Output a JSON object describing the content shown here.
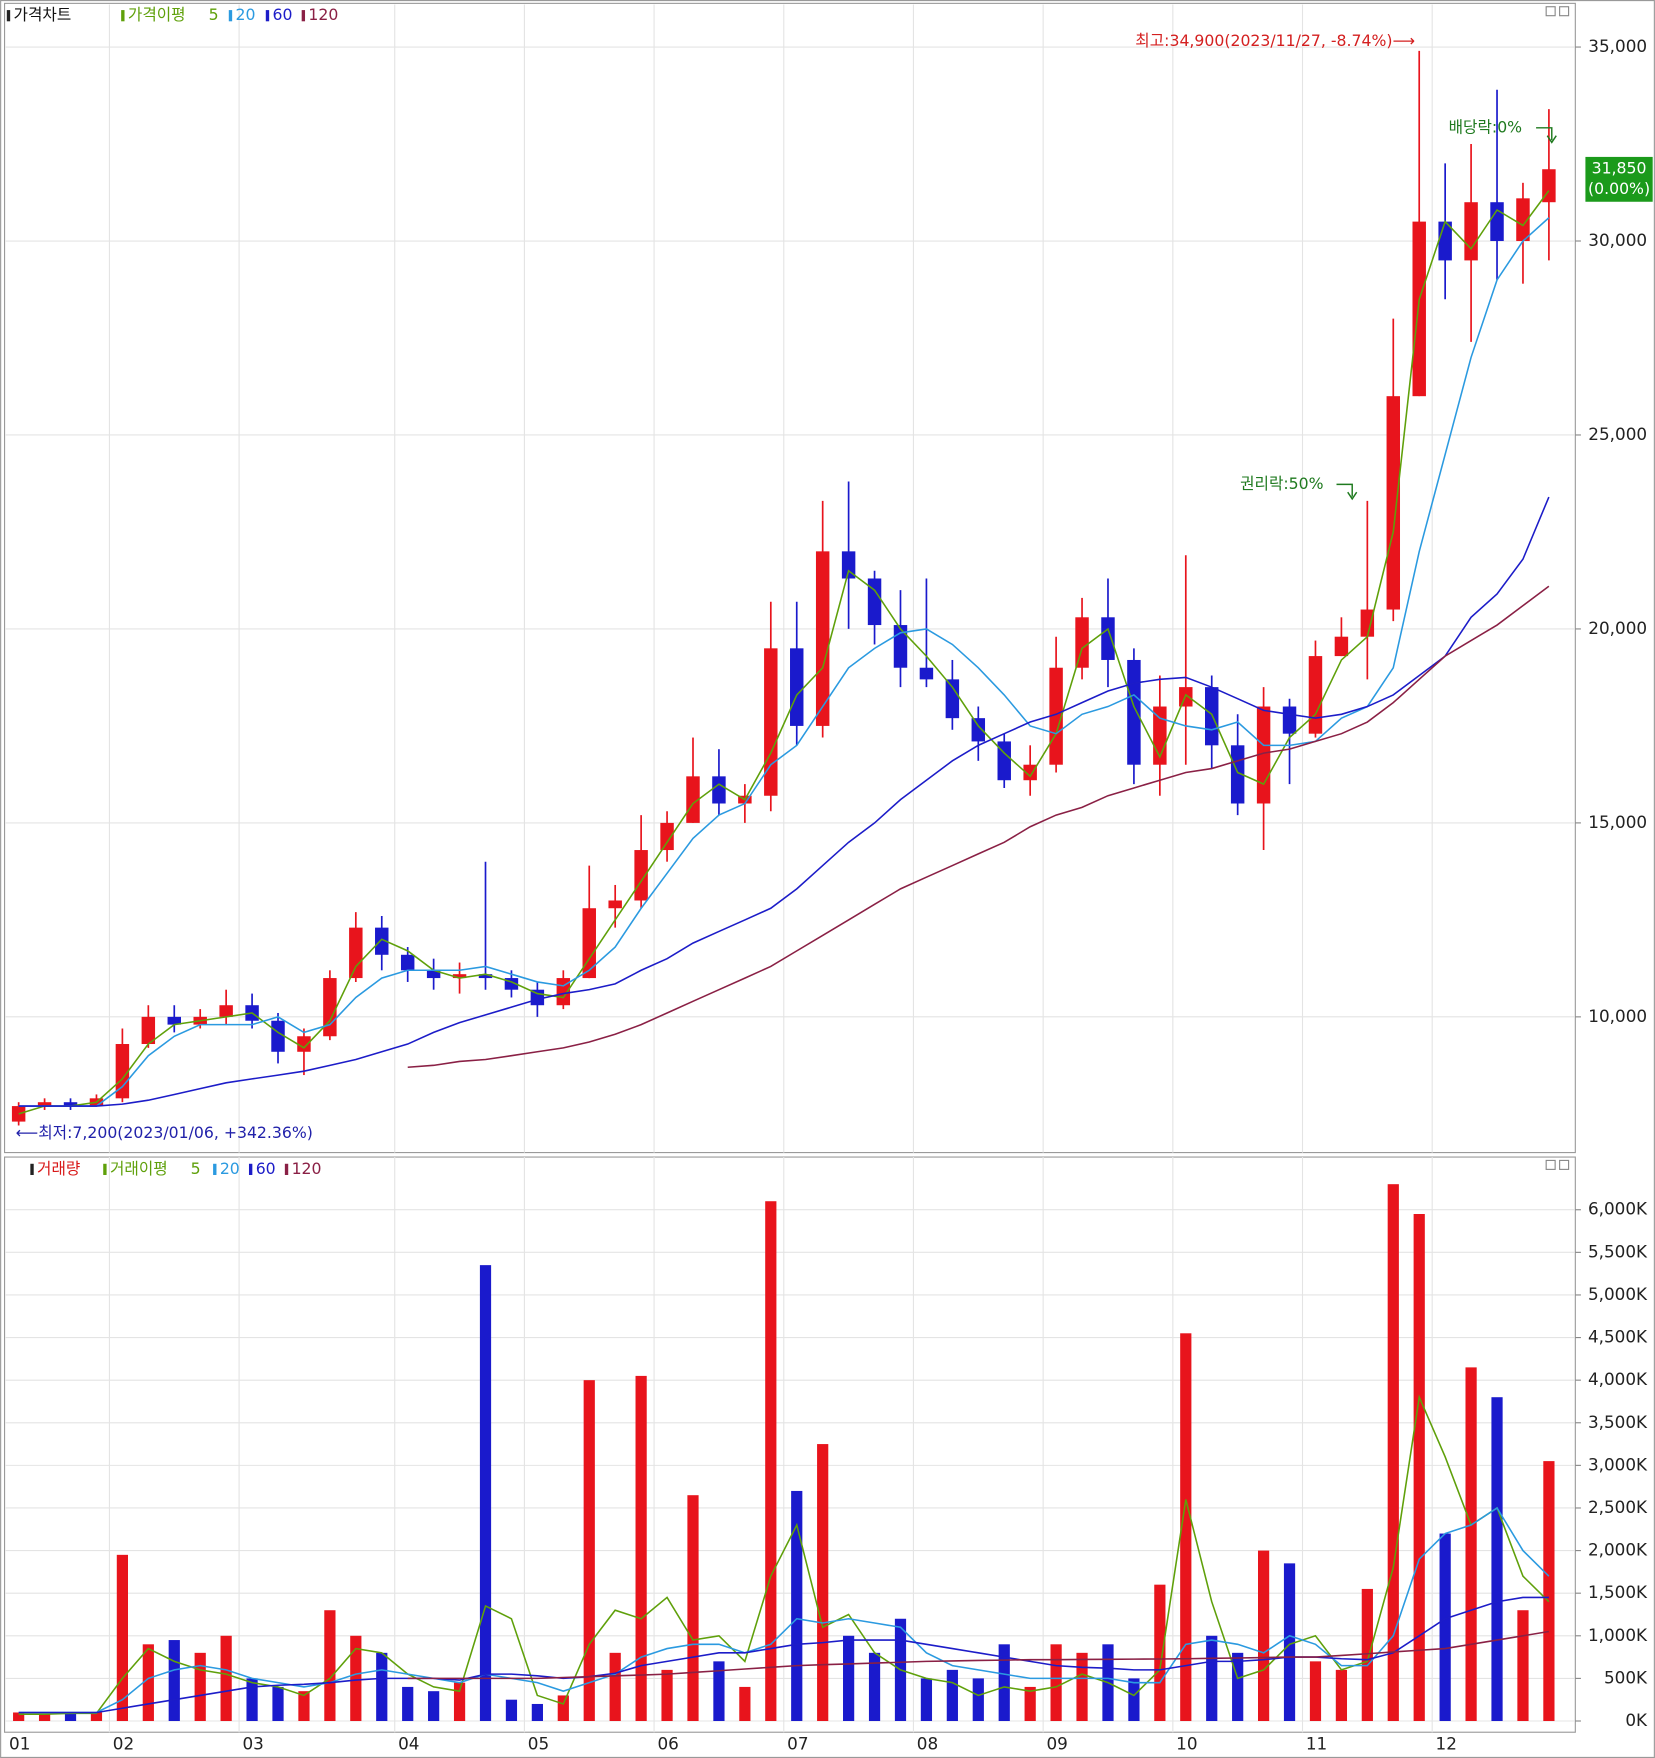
{
  "chart_data": [
    {
      "type": "candlestick",
      "title": "가격차트",
      "ma_title": "가격이평",
      "up_color": "#e8141c",
      "down_color": "#1a1acc",
      "open": [
        7300,
        7700,
        7800,
        7700,
        7900,
        9300,
        10000,
        9800,
        10000,
        10300,
        9900,
        9100,
        9500,
        11000,
        12300,
        11600,
        11200,
        11000,
        11100,
        11000,
        10700,
        10300,
        11000,
        12800,
        13000,
        14300,
        15000,
        16200,
        15500,
        15700,
        19500,
        17500,
        22000,
        21300,
        20100,
        19000,
        18700,
        17700,
        17100,
        16100,
        16500,
        19000,
        20300,
        19200,
        16500,
        18000,
        18500,
        17000,
        15500,
        18000,
        17300,
        19300,
        19800,
        20500,
        26000,
        30500,
        29500,
        31000,
        30000,
        31000
      ],
      "high": [
        7800,
        7900,
        7900,
        8000,
        9700,
        10300,
        10300,
        10200,
        10700,
        10600,
        10100,
        9700,
        11200,
        12700,
        12600,
        11800,
        11500,
        11400,
        14000,
        11200,
        10900,
        11200,
        13900,
        13400,
        15200,
        15300,
        17200,
        16900,
        16000,
        20700,
        20700,
        23300,
        23800,
        21500,
        21000,
        21300,
        19200,
        18000,
        17300,
        17000,
        19800,
        20800,
        21300,
        19500,
        18800,
        21900,
        18800,
        17800,
        18500,
        18200,
        19700,
        20300,
        23300,
        28000,
        34900,
        32000,
        32500,
        33900,
        31500,
        33400
      ],
      "low": [
        7200,
        7600,
        7600,
        7700,
        7800,
        9200,
        9600,
        9700,
        9800,
        9700,
        8800,
        8500,
        9400,
        10900,
        11200,
        10900,
        10700,
        10600,
        10700,
        10500,
        10000,
        10200,
        11000,
        12300,
        12800,
        14000,
        15000,
        15200,
        15000,
        15300,
        17000,
        17200,
        20000,
        19600,
        18500,
        18500,
        17400,
        16600,
        15900,
        15700,
        16300,
        18700,
        18500,
        16000,
        15700,
        16500,
        16400,
        15200,
        14300,
        16000,
        17200,
        19300,
        18700,
        20200,
        26000,
        28500,
        27400,
        29000,
        28900,
        29500
      ],
      "close": [
        7700,
        7800,
        7700,
        7900,
        9300,
        10000,
        9800,
        10000,
        10300,
        9900,
        9100,
        9500,
        11000,
        12300,
        11600,
        11200,
        11000,
        11100,
        11000,
        10700,
        10300,
        11000,
        12800,
        13000,
        14300,
        15000,
        16200,
        15500,
        15700,
        19500,
        17500,
        22000,
        21300,
        20100,
        19000,
        18700,
        17700,
        17100,
        16100,
        16500,
        19000,
        20300,
        19200,
        16500,
        18000,
        18500,
        17000,
        15500,
        18000,
        17300,
        19300,
        19800,
        20500,
        26000,
        30500,
        29500,
        31000,
        30000,
        31100,
        31850
      ],
      "series": [
        {
          "name": "5",
          "color": "#5fa00a",
          "values": [
            7500,
            7700,
            7700,
            7800,
            8400,
            9300,
            9800,
            9900,
            10000,
            10100,
            9600,
            9200,
            9900,
            11300,
            12000,
            11700,
            11200,
            11000,
            11100,
            10900,
            10600,
            10500,
            11500,
            12500,
            13500,
            14500,
            15500,
            16000,
            15600,
            16800,
            18300,
            19000,
            21500,
            21000,
            20000,
            19300,
            18500,
            17500,
            16800,
            16200,
            17300,
            19500,
            20000,
            18000,
            16700,
            18300,
            17800,
            16300,
            16000,
            17200,
            17800,
            19200,
            19800,
            22500,
            28500,
            30500,
            29800,
            30800,
            30400,
            31300
          ]
        },
        {
          "name": "20",
          "color": "#2b9ae0",
          "values": [
            7700,
            7700,
            7700,
            7700,
            8200,
            9000,
            9500,
            9800,
            9800,
            9800,
            10000,
            9600,
            9800,
            10500,
            11000,
            11200,
            11200,
            11200,
            11300,
            11100,
            10900,
            10800,
            11200,
            11800,
            12800,
            13700,
            14600,
            15200,
            15500,
            16500,
            17000,
            18000,
            19000,
            19500,
            19900,
            20000,
            19600,
            19000,
            18300,
            17500,
            17300,
            17800,
            18000,
            18300,
            17700,
            17500,
            17400,
            17600,
            17000,
            17000,
            17100,
            17700,
            18000,
            19000,
            22000,
            24500,
            27000,
            29000,
            30000,
            30600
          ]
        },
        {
          "name": "60",
          "color": "#1c1cc8",
          "values": [
            7700,
            7700,
            7700,
            7700,
            7750,
            7850,
            8000,
            8150,
            8300,
            8400,
            8500,
            8600,
            8750,
            8900,
            9100,
            9300,
            9600,
            9850,
            10050,
            10250,
            10450,
            10600,
            10700,
            10850,
            11200,
            11500,
            11900,
            12200,
            12500,
            12800,
            13300,
            13900,
            14500,
            15000,
            15600,
            16100,
            16600,
            17000,
            17300,
            17600,
            17800,
            18100,
            18400,
            18600,
            18700,
            18750,
            18500,
            18200,
            17900,
            17800,
            17700,
            17800,
            18000,
            18300,
            18800,
            19300,
            20300,
            20900,
            21800,
            23400
          ]
        },
        {
          "name": "120",
          "color": "#8a2045",
          "values": [
            null,
            null,
            null,
            null,
            null,
            null,
            null,
            null,
            null,
            null,
            null,
            null,
            null,
            null,
            null,
            8700,
            8750,
            8850,
            8900,
            9000,
            9100,
            9200,
            9350,
            9550,
            9800,
            10100,
            10400,
            10700,
            11000,
            11300,
            11700,
            12100,
            12500,
            12900,
            13300,
            13600,
            13900,
            14200,
            14500,
            14900,
            15200,
            15400,
            15700,
            15900,
            16100,
            16300,
            16400,
            16600,
            16800,
            16900,
            17100,
            17300,
            17600,
            18100,
            18700,
            19300,
            19700,
            20100,
            20600,
            21100
          ]
        }
      ],
      "ylim": [
        6600,
        35600
      ],
      "yticks": [
        {
          "value": 10000,
          "label": "10,000"
        },
        {
          "value": 15000,
          "label": "15,000"
        },
        {
          "value": 20000,
          "label": "20,000"
        },
        {
          "value": 25000,
          "label": "25,000"
        },
        {
          "value": 30000,
          "label": "30,000"
        },
        {
          "value": 35000,
          "label": "35,000"
        }
      ],
      "grid": true,
      "annotations": [
        "최고:34,900(2023/11/27, -8.74%)⟶",
        "⟵최저:7,200(2023/01/06, +342.36%)",
        "권리락:50%",
        "배당락:0%"
      ],
      "last_labels": [
        "31,850",
        "(0.00%)"
      ],
      "last_color": "#1b9a1b"
    },
    {
      "type": "bar",
      "title": "거래량",
      "ma_title": "거래이평",
      "categories": [
        "01",
        null,
        null,
        null,
        "02",
        null,
        null,
        null,
        null,
        "03",
        null,
        null,
        null,
        null,
        null,
        "04",
        null,
        null,
        null,
        null,
        "05",
        null,
        null,
        null,
        null,
        "06",
        null,
        null,
        null,
        null,
        "07",
        null,
        null,
        null,
        null,
        "08",
        null,
        null,
        null,
        null,
        "09",
        null,
        null,
        null,
        null,
        "10",
        null,
        null,
        null,
        null,
        "11",
        null,
        null,
        null,
        null,
        "12",
        null,
        null,
        null,
        null
      ],
      "values": [
        100000,
        80000,
        90000,
        100000,
        1950000,
        900000,
        950000,
        800000,
        1000000,
        500000,
        400000,
        350000,
        1300000,
        1000000,
        800000,
        400000,
        350000,
        450000,
        5350000,
        250000,
        200000,
        300000,
        4000000,
        800000,
        4050000,
        600000,
        2650000,
        700000,
        400000,
        6100000,
        2700000,
        3250000,
        1000000,
        800000,
        1200000,
        500000,
        600000,
        500000,
        900000,
        400000,
        900000,
        800000,
        900000,
        500000,
        1600000,
        4550000,
        1000000,
        800000,
        2000000,
        1850000,
        700000,
        600000,
        1550000,
        6300000,
        5950000,
        2200000,
        4150000,
        3800000,
        1300000,
        3050000
      ],
      "series": [
        {
          "name": "5",
          "color": "#5fa00a",
          "values": [
            80000,
            80000,
            90000,
            90000,
            500000,
            850000,
            700000,
            600000,
            550000,
            450000,
            400000,
            300000,
            500000,
            850000,
            800000,
            550000,
            400000,
            350000,
            1350000,
            1200000,
            300000,
            200000,
            900000,
            1300000,
            1200000,
            1450000,
            950000,
            1000000,
            700000,
            1700000,
            2300000,
            1100000,
            1250000,
            800000,
            600000,
            500000,
            450000,
            300000,
            400000,
            350000,
            400000,
            550000,
            450000,
            300000,
            600000,
            2600000,
            1400000,
            500000,
            600000,
            900000,
            1000000,
            600000,
            700000,
            1800000,
            3800000,
            3100000,
            2300000,
            2500000,
            1700000,
            1400000
          ]
        },
        {
          "name": "20",
          "color": "#2b9ae0",
          "values": [
            100000,
            100000,
            100000,
            100000,
            250000,
            500000,
            600000,
            650000,
            600000,
            500000,
            450000,
            400000,
            450000,
            550000,
            600000,
            550000,
            500000,
            450000,
            550000,
            500000,
            450000,
            350000,
            450000,
            550000,
            750000,
            850000,
            900000,
            900000,
            800000,
            900000,
            1200000,
            1150000,
            1200000,
            1150000,
            1100000,
            800000,
            650000,
            600000,
            550000,
            500000,
            500000,
            500000,
            500000,
            450000,
            450000,
            900000,
            950000,
            900000,
            800000,
            1000000,
            900000,
            650000,
            650000,
            1000000,
            1900000,
            2200000,
            2300000,
            2500000,
            2000000,
            1700000
          ]
        },
        {
          "name": "60",
          "color": "#1c1cc8",
          "values": [
            100000,
            100000,
            100000,
            100000,
            150000,
            200000,
            250000,
            300000,
            350000,
            400000,
            420000,
            430000,
            450000,
            480000,
            500000,
            500000,
            500000,
            480000,
            550000,
            550000,
            530000,
            500000,
            520000,
            560000,
            650000,
            700000,
            750000,
            800000,
            800000,
            850000,
            900000,
            920000,
            950000,
            950000,
            950000,
            900000,
            850000,
            800000,
            750000,
            700000,
            650000,
            630000,
            620000,
            600000,
            600000,
            650000,
            700000,
            700000,
            720000,
            750000,
            750000,
            730000,
            720000,
            800000,
            1000000,
            1200000,
            1300000,
            1400000,
            1450000,
            1450000
          ]
        },
        {
          "name": "120",
          "color": "#8a2045",
          "values": [
            null,
            null,
            null,
            null,
            null,
            null,
            null,
            null,
            null,
            null,
            null,
            null,
            null,
            null,
            null,
            500000,
            500000,
            500000,
            500000,
            500000,
            500000,
            510000,
            520000,
            530000,
            540000,
            550000,
            570000,
            590000,
            610000,
            630000,
            650000,
            660000,
            670000,
            680000,
            690000,
            700000,
            705000,
            710000,
            715000,
            720000,
            720000,
            722000,
            724000,
            726000,
            728000,
            730000,
            735000,
            740000,
            745000,
            750000,
            750000,
            770000,
            790000,
            810000,
            830000,
            850000,
            900000,
            950000,
            1000000,
            1050000
          ]
        }
      ],
      "ylim": [
        0,
        6400000
      ],
      "yticks": [
        {
          "value": 0,
          "label": "0K"
        },
        {
          "value": 500000,
          "label": "500K"
        },
        {
          "value": 1000000,
          "label": "1,000K"
        },
        {
          "value": 1500000,
          "label": "1,500K"
        },
        {
          "value": 2000000,
          "label": "2,000K"
        },
        {
          "value": 2500000,
          "label": "2,500K"
        },
        {
          "value": 3000000,
          "label": "3,000K"
        },
        {
          "value": 3500000,
          "label": "3,500K"
        },
        {
          "value": 4000000,
          "label": "4,000K"
        },
        {
          "value": 4500000,
          "label": "4,500K"
        },
        {
          "value": 5000000,
          "label": "5,000K"
        },
        {
          "value": 5500000,
          "label": "5,500K"
        },
        {
          "value": 6000000,
          "label": "6,000K"
        }
      ],
      "grid": true
    }
  ]
}
